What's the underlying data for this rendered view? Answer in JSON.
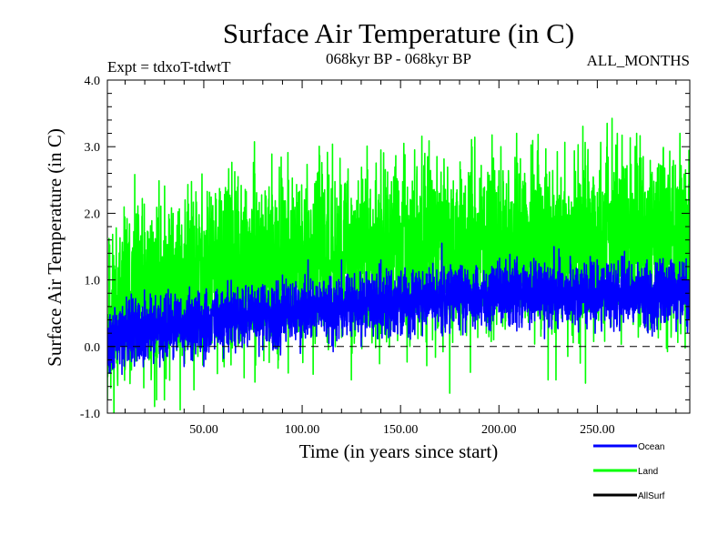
{
  "chart_data": {
    "type": "line",
    "title": "Surface Air Temperature (in C)",
    "subtitle_left": "Expt = tdxoT-tdwtT",
    "subtitle_center": "068kyr BP - 068kyr BP",
    "subtitle_right": "ALL_MONTHS",
    "xlabel": "Time (in years since start)",
    "ylabel": "Surface Air Temperature (in C)",
    "xlim": [
      1,
      297
    ],
    "ylim": [
      -1.0,
      4.0
    ],
    "x_ticks": [
      50,
      100,
      150,
      200,
      250
    ],
    "x_tick_labels": [
      "50.00",
      "100.00",
      "150.00",
      "200.00",
      "250.00"
    ],
    "y_ticks": [
      -1.0,
      0.0,
      1.0,
      2.0,
      3.0,
      4.0
    ],
    "y_tick_labels": [
      "-1.0",
      "0.0",
      "1.0",
      "2.0",
      "3.0",
      "4.0"
    ],
    "reference_line": {
      "y": 0.0,
      "style": "dashed"
    },
    "legend_position": "bottom-right",
    "series": [
      {
        "name": "Land",
        "color": "#00ff00",
        "trend": {
          "x": [
            1,
            10,
            50,
            100,
            150,
            200,
            250,
            297
          ],
          "y": [
            0.3,
            0.7,
            1.1,
            1.3,
            1.45,
            1.5,
            1.6,
            1.6
          ]
        },
        "amplitude": 0.95,
        "peaks": {
          "x": [
            140,
            201,
            209,
            255,
            270,
            292
          ],
          "y": [
            2.95,
            3.0,
            3.2,
            3.35,
            3.2,
            3.2
          ]
        },
        "troughs": {
          "x": [
            1,
            25,
            30,
            38,
            45,
            125,
            175,
            225,
            229,
            244
          ],
          "y": [
            -0.8,
            -0.9,
            -0.8,
            -0.95,
            -0.65,
            -0.5,
            -0.7,
            -0.5,
            -0.5,
            -0.55
          ]
        },
        "seed": 11
      },
      {
        "name": "Ocean",
        "color": "#0000ff",
        "trend": {
          "x": [
            1,
            10,
            50,
            100,
            150,
            200,
            250,
            297
          ],
          "y": [
            0.0,
            0.25,
            0.35,
            0.55,
            0.65,
            0.8,
            0.8,
            0.75
          ]
        },
        "amplitude": 0.35,
        "peaks": {
          "x": [
            103,
            120,
            140,
            171,
            208,
            228,
            263
          ],
          "y": [
            1.3,
            1.3,
            1.3,
            1.55,
            1.3,
            1.5,
            1.35
          ]
        },
        "troughs": {
          "x": [
            2,
            40,
            50,
            80,
            130
          ],
          "y": [
            -0.4,
            -0.3,
            -0.3,
            -0.05,
            0.0
          ]
        },
        "seed": 29
      },
      {
        "name": "AllSurf",
        "color": "#000000",
        "trend": {
          "x": [
            1,
            297
          ],
          "y": [
            0.8,
            0.8
          ]
        },
        "amplitude": 0.0,
        "peaks": {
          "x": [],
          "y": []
        },
        "troughs": {
          "x": [],
          "y": []
        },
        "seed": 3,
        "visible_in_plot": false
      }
    ],
    "legend_entries": [
      {
        "label": "Ocean",
        "color": "#0000ff"
      },
      {
        "label": "Land",
        "color": "#00ff00"
      },
      {
        "label": "AllSurf",
        "color": "#000000"
      }
    ]
  }
}
